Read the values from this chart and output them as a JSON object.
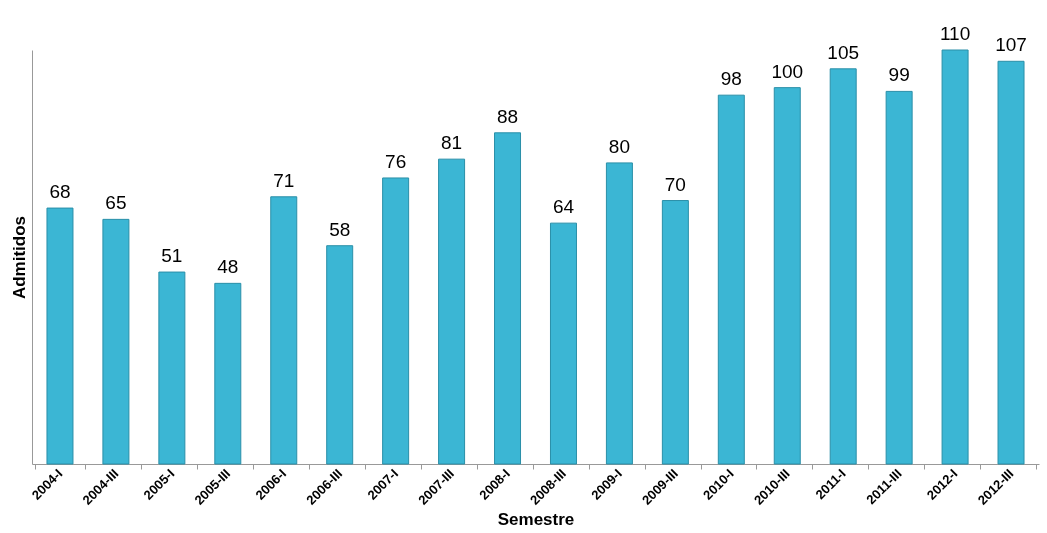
{
  "chart_data": {
    "type": "bar",
    "xlabel": "Semestre",
    "ylabel": "Admitidos",
    "categories": [
      "2004-I",
      "2004-III",
      "2005-I",
      "2005-III",
      "2006-I",
      "2006-III",
      "2007-I",
      "2007-III",
      "2008-I",
      "2008-III",
      "2009-I",
      "2009-III",
      "2010-I",
      "2010-III",
      "2011-I",
      "2011-III",
      "2012-I",
      "2012-III"
    ],
    "values": [
      68,
      65,
      51,
      48,
      71,
      58,
      76,
      81,
      88,
      64,
      80,
      70,
      98,
      100,
      105,
      99,
      110,
      107
    ],
    "color": "#3bb6d4",
    "data_labels": true,
    "tick_labels": "x"
  }
}
